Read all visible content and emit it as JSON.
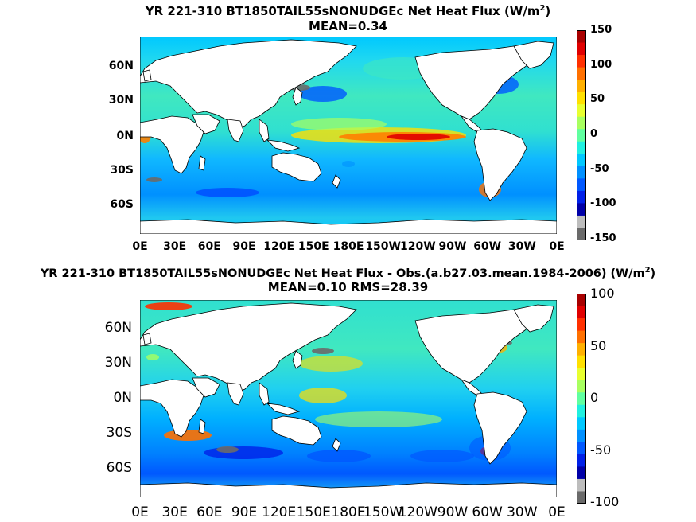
{
  "panels": [
    {
      "title_line1": "YR 221-310 BT1850TAIL55sNONUDGEc  Net Heat Flux (W/m",
      "title_sup": "2",
      "title_line1_end": ")",
      "title_line2": "MEAN=0.34",
      "lat_labels": [
        "60N",
        "30N",
        "0N",
        "30S",
        "60S"
      ],
      "lon_labels": [
        "0E",
        "30E",
        "60E",
        "90E",
        "120E",
        "150E",
        "180E",
        "150W",
        "120W",
        "90W",
        "60W",
        "30W",
        "0E"
      ],
      "colorbar_labels": [
        "150",
        "100",
        "50",
        "0",
        "-50",
        "-100",
        "-150"
      ],
      "colorbar_colors": [
        "#a80000",
        "#e00000",
        "#ff3000",
        "#ff7000",
        "#ffb000",
        "#ffe000",
        "#e8ff30",
        "#a8ff60",
        "#60ffa0",
        "#20f0e0",
        "#00c8ff",
        "#0090ff",
        "#0058ff",
        "#0020e8",
        "#0000a8",
        "#bdbdbd",
        "#6a6a6a"
      ]
    },
    {
      "title_line1": "YR 221-310 BT1850TAIL55sNONUDGEc  Net Heat Flux - Obs.(a.b27.03.mean.1984-2006) (W/m",
      "title_sup": "2",
      "title_line1_end": ")",
      "title_line2": "MEAN=0.10 RMS=28.39",
      "lat_labels": [
        "60N",
        "30N",
        "0N",
        "30S",
        "60S"
      ],
      "lon_labels": [
        "0E",
        "30E",
        "60E",
        "90E",
        "120E",
        "150E",
        "180E",
        "150W",
        "120W",
        "90W",
        "60W",
        "30W",
        "0E"
      ],
      "colorbar_labels": [
        "100",
        "50",
        "0",
        "-50",
        "-100"
      ],
      "colorbar_colors": [
        "#a80000",
        "#e00000",
        "#ff3000",
        "#ff7000",
        "#ffb000",
        "#ffe000",
        "#e8ff30",
        "#a8ff60",
        "#60ffa0",
        "#20f0e0",
        "#00c8ff",
        "#0090ff",
        "#0058ff",
        "#0020e8",
        "#0000a8",
        "#bdbdbd",
        "#6a6a6a"
      ]
    }
  ]
}
